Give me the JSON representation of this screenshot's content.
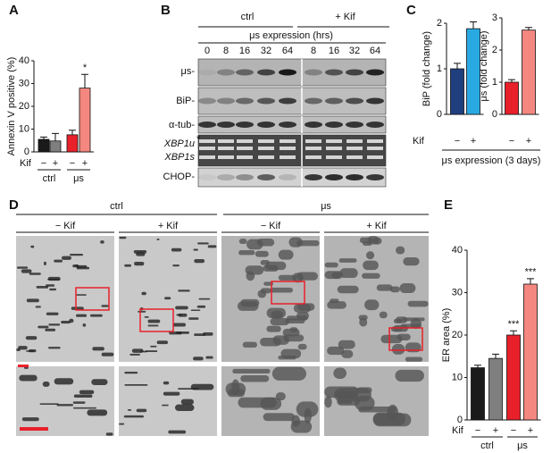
{
  "panels": {
    "labels": [
      "A",
      "B",
      "C",
      "D",
      "E"
    ],
    "c_xlabel": "μs expression (3 days)"
  },
  "chart_data": [
    {
      "type": "bar",
      "y_label": "Annexin V positive (%)",
      "x_label": "Kif",
      "categories": [
        "−",
        "+",
        "−",
        "+"
      ],
      "groups": [
        "ctrl",
        "μs"
      ],
      "values": [
        5.5,
        4.8,
        7.5,
        28
      ],
      "errors": [
        1,
        3.3,
        2,
        6
      ],
      "colors": [
        "#1a1a1a",
        "#7f7f7f",
        "#e8202a",
        "#f4877f"
      ],
      "value_annotations": [
        null,
        null,
        null,
        "*"
      ],
      "ylim": [
        0,
        40
      ],
      "yticks": [
        0,
        10,
        20,
        30,
        40
      ]
    },
    {
      "type": "bar",
      "y_label": "BiP (fold change)",
      "x_label": "Kif",
      "categories": [
        "−",
        "+"
      ],
      "values": [
        1.0,
        1.88
      ],
      "errors": [
        0.12,
        0.15
      ],
      "colors": [
        "#1f3f7f",
        "#29a9e1"
      ],
      "ylim": [
        0,
        2
      ],
      "yticks": [
        0,
        1,
        2
      ]
    },
    {
      "type": "bar",
      "y_label": "μs (fold change)",
      "categories": [
        "−",
        "+"
      ],
      "values": [
        1.0,
        2.62
      ],
      "errors": [
        0.08,
        0.08
      ],
      "colors": [
        "#e8202a",
        "#f4877f"
      ],
      "ylim": [
        0,
        3
      ],
      "yticks": [
        0,
        1,
        2,
        3
      ]
    },
    {
      "type": "bar",
      "y_label": "ER area (%)",
      "x_label": "Kif",
      "categories": [
        "−",
        "+",
        "−",
        "+"
      ],
      "groups": [
        "ctrl",
        "μs"
      ],
      "values": [
        12.3,
        14.5,
        20,
        32
      ],
      "errors": [
        0.6,
        1,
        1,
        1.3
      ],
      "colors": [
        "#1a1a1a",
        "#7f7f7f",
        "#e8202a",
        "#f4877f"
      ],
      "value_annotations": [
        null,
        null,
        "***",
        "***"
      ],
      "ylim": [
        0,
        40
      ],
      "yticks": [
        0,
        10,
        20,
        30,
        40
      ]
    }
  ],
  "blot": {
    "header_groups": [
      "ctrl",
      "+ Kif"
    ],
    "axis_title": "μs expression (hrs)",
    "timepoints": [
      0,
      8,
      16,
      32,
      64,
      8,
      16,
      32,
      64
    ],
    "rows": [
      "μs-",
      "BiP-",
      "α-tub-",
      "XBP1u",
      "XBP1s",
      "CHOP-"
    ],
    "marker": "*"
  },
  "em": {
    "groups": [
      "ctrl",
      "μs"
    ],
    "conditions": [
      "− Kif",
      "+ Kif",
      "− Kif",
      "+ Kif"
    ]
  }
}
